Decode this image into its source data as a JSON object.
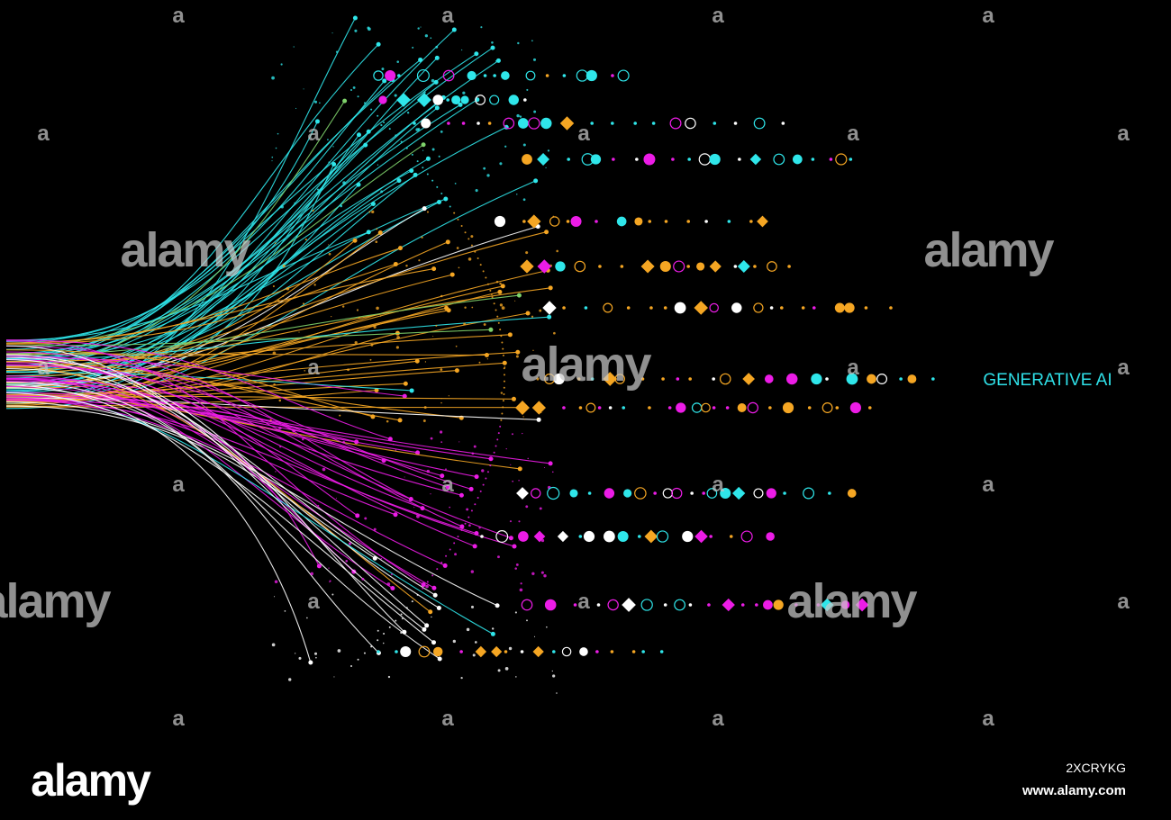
{
  "title": "GENERATIVE AI",
  "watermark": "alamy",
  "watermark_mark": "a",
  "logo": "alamy",
  "image_id": "2XCRYKG",
  "url": "www.alamy.com"
}
